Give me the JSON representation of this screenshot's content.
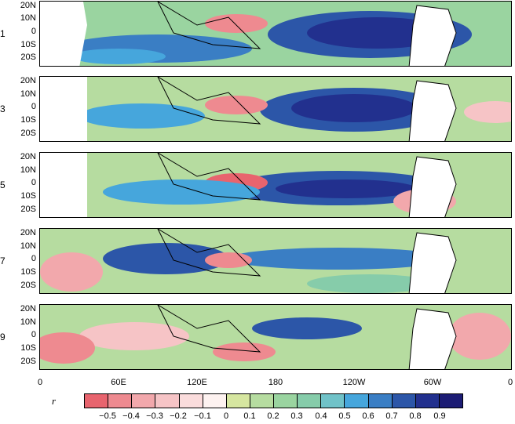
{
  "panels": [
    {
      "lead": "1",
      "lat_ticks": [
        "20N",
        "10N",
        "0",
        "10S",
        "20S"
      ]
    },
    {
      "lead": "3",
      "lat_ticks": [
        "20N",
        "10N",
        "0",
        "10S",
        "20S"
      ]
    },
    {
      "lead": "5",
      "lat_ticks": [
        "20N",
        "10N",
        "0",
        "10S",
        "20S"
      ]
    },
    {
      "lead": "7",
      "lat_ticks": [
        "20N",
        "10N",
        "0",
        "10S",
        "20S"
      ]
    },
    {
      "lead": "9",
      "lat_ticks": [
        "20N",
        "10N",
        "0",
        "10S",
        "20S"
      ]
    }
  ],
  "lon_ticks": [
    "0",
    "60E",
    "120E",
    "180",
    "120W",
    "60W",
    "0"
  ],
  "colorbar": {
    "label": "r",
    "tick_labels": [
      "−0.5",
      "−0.4",
      "−0.3",
      "−0.2",
      "−0.1",
      "0",
      "0.1",
      "0.2",
      "0.3",
      "0.4",
      "0.5",
      "0.6",
      "0.7",
      "0.8",
      "0.9"
    ],
    "colors": [
      "#e8646e",
      "#ee8a90",
      "#f2a8ac",
      "#f6c4c6",
      "#fadcdc",
      "#fdf2f0",
      "#d6e6a0",
      "#b6dca0",
      "#9ad4a0",
      "#86ccaa",
      "#70c2c8",
      "#46a6dc",
      "#3a7ec4",
      "#2c56a8",
      "#22308e",
      "#1c1c74"
    ]
  }
}
